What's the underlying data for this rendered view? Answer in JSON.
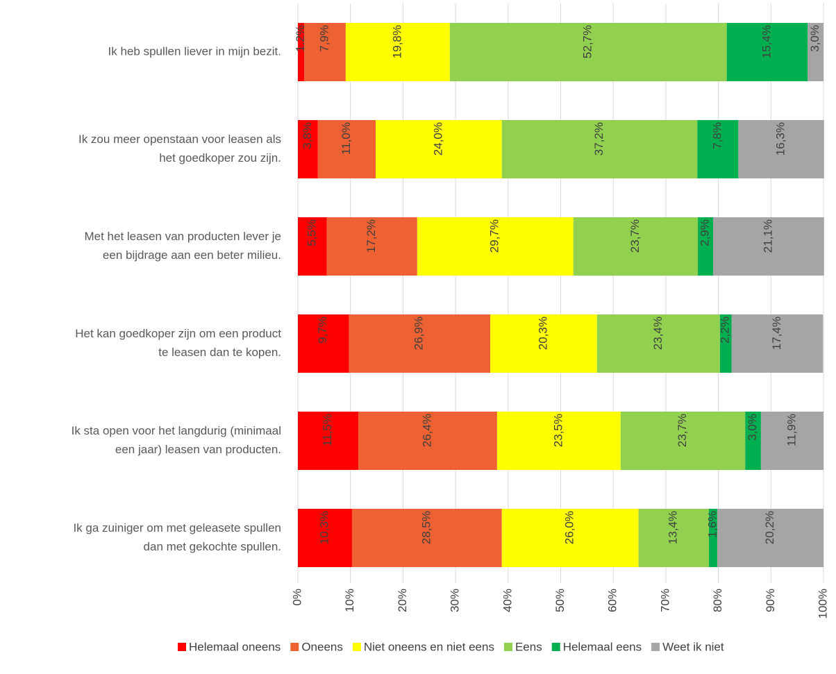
{
  "chart_data": {
    "type": "stacked_barh",
    "categories": [
      [
        "Ik heb spullen liever in mijn bezit."
      ],
      [
        "Ik zou meer openstaan voor leasen als",
        "het goedkoper zou zijn."
      ],
      [
        "Met het leasen van producten lever je",
        "een bijdrage aan een beter milieu."
      ],
      [
        "Het kan goedkoper zijn om een product",
        "te leasen dan te kopen."
      ],
      [
        "Ik sta open voor het langdurig (minimaal",
        "een jaar) leasen van producten."
      ],
      [
        "Ik ga zuiniger om met geleasete spullen",
        "dan met gekochte spullen."
      ]
    ],
    "series": [
      {
        "name": "Helemaal oneens",
        "color": "#ff0000",
        "values": [
          1.2,
          3.8,
          5.5,
          9.7,
          11.5,
          10.3
        ],
        "value_labels": [
          "1,2%",
          "3,8%",
          "5,5%",
          "9,7%",
          "11,5%",
          "10,3%"
        ]
      },
      {
        "name": "Oneens",
        "color": "#ee6132",
        "values": [
          7.9,
          11.0,
          17.2,
          26.9,
          26.4,
          28.5
        ],
        "value_labels": [
          "7,9%",
          "11,0%",
          "17,2%",
          "26,9%",
          "26,4%",
          "28,5%"
        ]
      },
      {
        "name": "Niet oneens en niet eens",
        "color": "#ffff00",
        "values": [
          19.8,
          24.0,
          29.7,
          20.3,
          23.5,
          26.0
        ],
        "value_labels": [
          "19,8%",
          "24,0%",
          "29,7%",
          "20,3%",
          "23,5%",
          "26,0%"
        ]
      },
      {
        "name": "Eens",
        "color": "#92d050",
        "values": [
          52.7,
          37.2,
          23.7,
          23.4,
          23.7,
          13.4
        ],
        "value_labels": [
          "52,7%",
          "37,2%",
          "23,7%",
          "23,4%",
          "23,7%",
          "13,4%"
        ]
      },
      {
        "name": "Helemaal eens",
        "color": "#00b050",
        "values": [
          15.4,
          7.8,
          2.9,
          2.2,
          3.0,
          1.6
        ],
        "value_labels": [
          "15,4%",
          "7,8%",
          "2,9%",
          "2,2%",
          "3,0%",
          "1,6%"
        ]
      },
      {
        "name": "Weet ik niet",
        "color": "#a5a5a5",
        "values": [
          3.0,
          16.3,
          21.1,
          17.4,
          11.9,
          20.2
        ],
        "value_labels": [
          "3,0%",
          "16,3%",
          "21,1%",
          "17,4%",
          "11,9%",
          "20,2%"
        ]
      }
    ],
    "xlim": [
      0,
      100
    ],
    "xticks": [
      {
        "value": 0,
        "label": "0%"
      },
      {
        "value": 10,
        "label": "10%"
      },
      {
        "value": 20,
        "label": "20%"
      },
      {
        "value": 30,
        "label": "30%"
      },
      {
        "value": 40,
        "label": "40%"
      },
      {
        "value": 50,
        "label": "50%"
      },
      {
        "value": 60,
        "label": "60%"
      },
      {
        "value": 70,
        "label": "70%"
      },
      {
        "value": 80,
        "label": "80%"
      },
      {
        "value": 90,
        "label": "90%"
      },
      {
        "value": 100,
        "label": "100%"
      }
    ],
    "grid": true,
    "legend": "bottom"
  }
}
